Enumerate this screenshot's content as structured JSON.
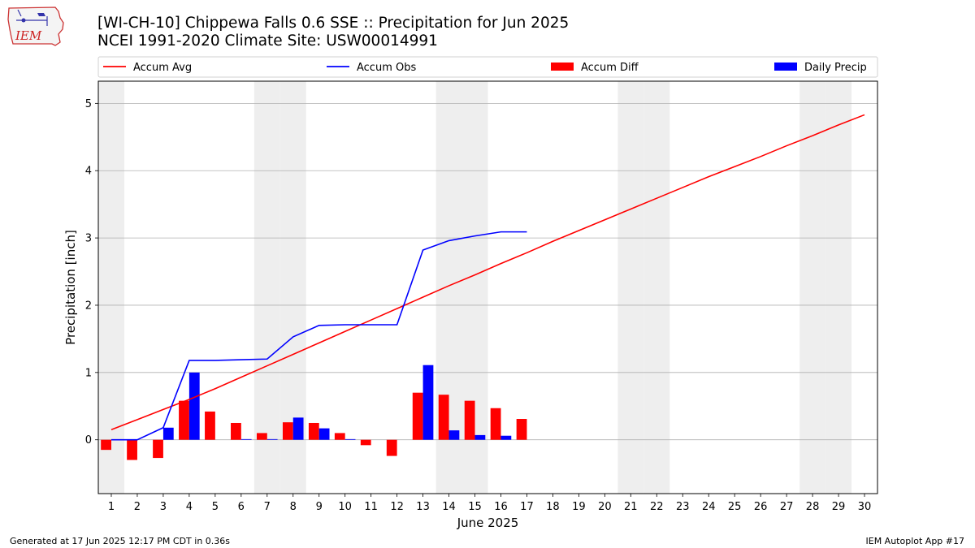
{
  "header": {
    "logo_text": "IEM",
    "title_line1": "[WI-CH-10] Chippewa Falls 0.6 SSE :: Precipitation for Jun 2025",
    "title_line2": "NCEI 1991-2020 Climate Site: USW00014991"
  },
  "footer": {
    "left": "Generated at 17 Jun 2025 12:17 PM CDT in 0.36s",
    "right": "IEM Autoplot App #17"
  },
  "colors": {
    "accum_avg": "#ff0000",
    "accum_obs": "#0000ff",
    "accum_diff": "#ff0000",
    "daily_precip": "#0000ff",
    "weekend_shade": "#eeeeee",
    "grid": "#b0b0b0"
  },
  "chart_data": {
    "type": "bar",
    "xlabel": "June 2025",
    "ylabel": "Precipitation [inch]",
    "xlim": [
      0.5,
      30.5
    ],
    "ylim": [
      -0.8,
      5.33
    ],
    "yticks": [
      0,
      1,
      2,
      3,
      4,
      5
    ],
    "grid": "horizontal",
    "legend_placement": "top (above plot, single row)",
    "days": [
      1,
      2,
      3,
      4,
      5,
      6,
      7,
      8,
      9,
      10,
      11,
      12,
      13,
      14,
      15,
      16,
      17,
      18,
      19,
      20,
      21,
      22,
      23,
      24,
      25,
      26,
      27,
      28,
      29,
      30
    ],
    "weekend_shaded_days": [
      1,
      7,
      8,
      14,
      15,
      21,
      22,
      28,
      29
    ],
    "series": [
      {
        "name": "Accum Avg",
        "kind": "line",
        "values": [
          0.15,
          0.3,
          0.45,
          0.6,
          0.76,
          0.93,
          1.1,
          1.27,
          1.44,
          1.61,
          1.78,
          1.95,
          2.12,
          2.29,
          2.45,
          2.62,
          2.78,
          2.95,
          3.11,
          3.27,
          3.43,
          3.59,
          3.75,
          3.91,
          4.06,
          4.21,
          4.37,
          4.52,
          4.68,
          4.83
        ]
      },
      {
        "name": "Accum Obs",
        "kind": "line",
        "values": [
          0.0,
          0.0,
          0.18,
          1.18,
          1.18,
          1.19,
          1.2,
          1.53,
          1.7,
          1.71,
          1.71,
          1.71,
          2.82,
          2.96,
          3.03,
          3.09,
          3.09
        ]
      },
      {
        "name": "Accum Diff",
        "kind": "bar",
        "values": [
          -0.15,
          -0.3,
          -0.27,
          0.58,
          0.42,
          0.25,
          0.1,
          0.26,
          0.25,
          0.1,
          -0.08,
          -0.24,
          0.7,
          0.67,
          0.58,
          0.47,
          0.31
        ]
      },
      {
        "name": "Daily Precip",
        "kind": "bar",
        "values": [
          0.0,
          0.0,
          0.18,
          1.0,
          0.0,
          0.01,
          0.01,
          0.33,
          0.17,
          0.01,
          0.0,
          0.0,
          1.11,
          0.14,
          0.07,
          0.06,
          0.0
        ]
      }
    ]
  }
}
